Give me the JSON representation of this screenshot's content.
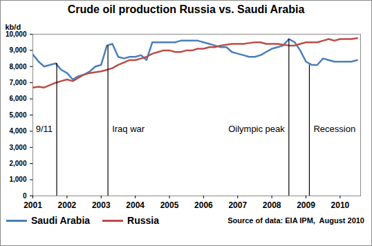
{
  "chart_data": {
    "type": "line",
    "title": "Crude oil production Russia vs. Saudi Arabia",
    "y_label": "kb/d",
    "caption": "Source of data: EIA IPM,  August 2010",
    "legend": "bottom",
    "grid": false,
    "x": [
      2001,
      2001.17,
      2001.33,
      2001.5,
      2001.67,
      2001.83,
      2002,
      2002.17,
      2002.33,
      2002.5,
      2002.67,
      2002.83,
      2003,
      2003.17,
      2003.33,
      2003.5,
      2003.67,
      2003.83,
      2004,
      2004.17,
      2004.33,
      2004.5,
      2004.67,
      2004.83,
      2005,
      2005.17,
      2005.33,
      2005.5,
      2005.67,
      2005.83,
      2006,
      2006.17,
      2006.33,
      2006.5,
      2006.67,
      2006.83,
      2007,
      2007.17,
      2007.33,
      2007.5,
      2007.67,
      2007.83,
      2008,
      2008.17,
      2008.33,
      2008.5,
      2008.67,
      2008.83,
      2009,
      2009.17,
      2009.33,
      2009.5,
      2009.67,
      2009.83,
      2010,
      2010.17,
      2010.33,
      2010.5
    ],
    "series": [
      {
        "name": "Saudi Arabia",
        "color": "#4a7ebb",
        "values": [
          8750,
          8300,
          8000,
          8100,
          8200,
          7800,
          7600,
          7200,
          7400,
          7500,
          7700,
          8000,
          8100,
          9300,
          9400,
          8600,
          8500,
          8600,
          8600,
          8700,
          8400,
          9500,
          9500,
          9500,
          9500,
          9500,
          9600,
          9600,
          9600,
          9600,
          9500,
          9400,
          9300,
          9200,
          9200,
          8900,
          8800,
          8700,
          8600,
          8600,
          8700,
          8900,
          9100,
          9200,
          9300,
          9700,
          9500,
          9000,
          8300,
          8100,
          8100,
          8500,
          8400,
          8300,
          8300,
          8300,
          8300,
          8400
        ]
      },
      {
        "name": "Russia",
        "color": "#be4b48",
        "values": [
          6700,
          6750,
          6700,
          6850,
          7000,
          7100,
          7200,
          7100,
          7300,
          7500,
          7600,
          7650,
          7700,
          7800,
          7900,
          8100,
          8250,
          8400,
          8400,
          8500,
          8600,
          8800,
          8900,
          9000,
          9000,
          8900,
          8900,
          9000,
          9000,
          9100,
          9100,
          9200,
          9200,
          9300,
          9350,
          9400,
          9400,
          9400,
          9450,
          9500,
          9500,
          9400,
          9400,
          9400,
          9350,
          9300,
          9300,
          9400,
          9500,
          9500,
          9500,
          9600,
          9700,
          9600,
          9700,
          9700,
          9700,
          9750
        ]
      }
    ],
    "annotations": [
      {
        "text": "9/11",
        "x": 2001.7
      },
      {
        "text": "Iraq war",
        "x": 2003.2
      },
      {
        "text": "Oilympic peak",
        "x": 2008.5
      },
      {
        "text": "Recession",
        "x": 2009.1
      }
    ],
    "xlim": [
      2001,
      2010.6
    ],
    "xticks": [
      2001,
      2002,
      2003,
      2004,
      2005,
      2006,
      2007,
      2008,
      2009,
      2010
    ],
    "ylim": [
      0,
      10000
    ],
    "yticks": [
      0,
      {
        "value": 1000,
        "label": "1,000"
      },
      {
        "value": 2000,
        "label": "2,000"
      },
      {
        "value": 3000,
        "label": "3,000"
      },
      {
        "value": 4000,
        "label": "4,000"
      },
      {
        "value": 5000,
        "label": "5,000"
      },
      {
        "value": 6000,
        "label": "6,000"
      },
      {
        "value": 7000,
        "label": "7,000"
      },
      {
        "value": 8000,
        "label": "8,000"
      },
      {
        "value": 9000,
        "label": "9,000"
      },
      {
        "value": 10000,
        "label": "10,000"
      }
    ]
  }
}
